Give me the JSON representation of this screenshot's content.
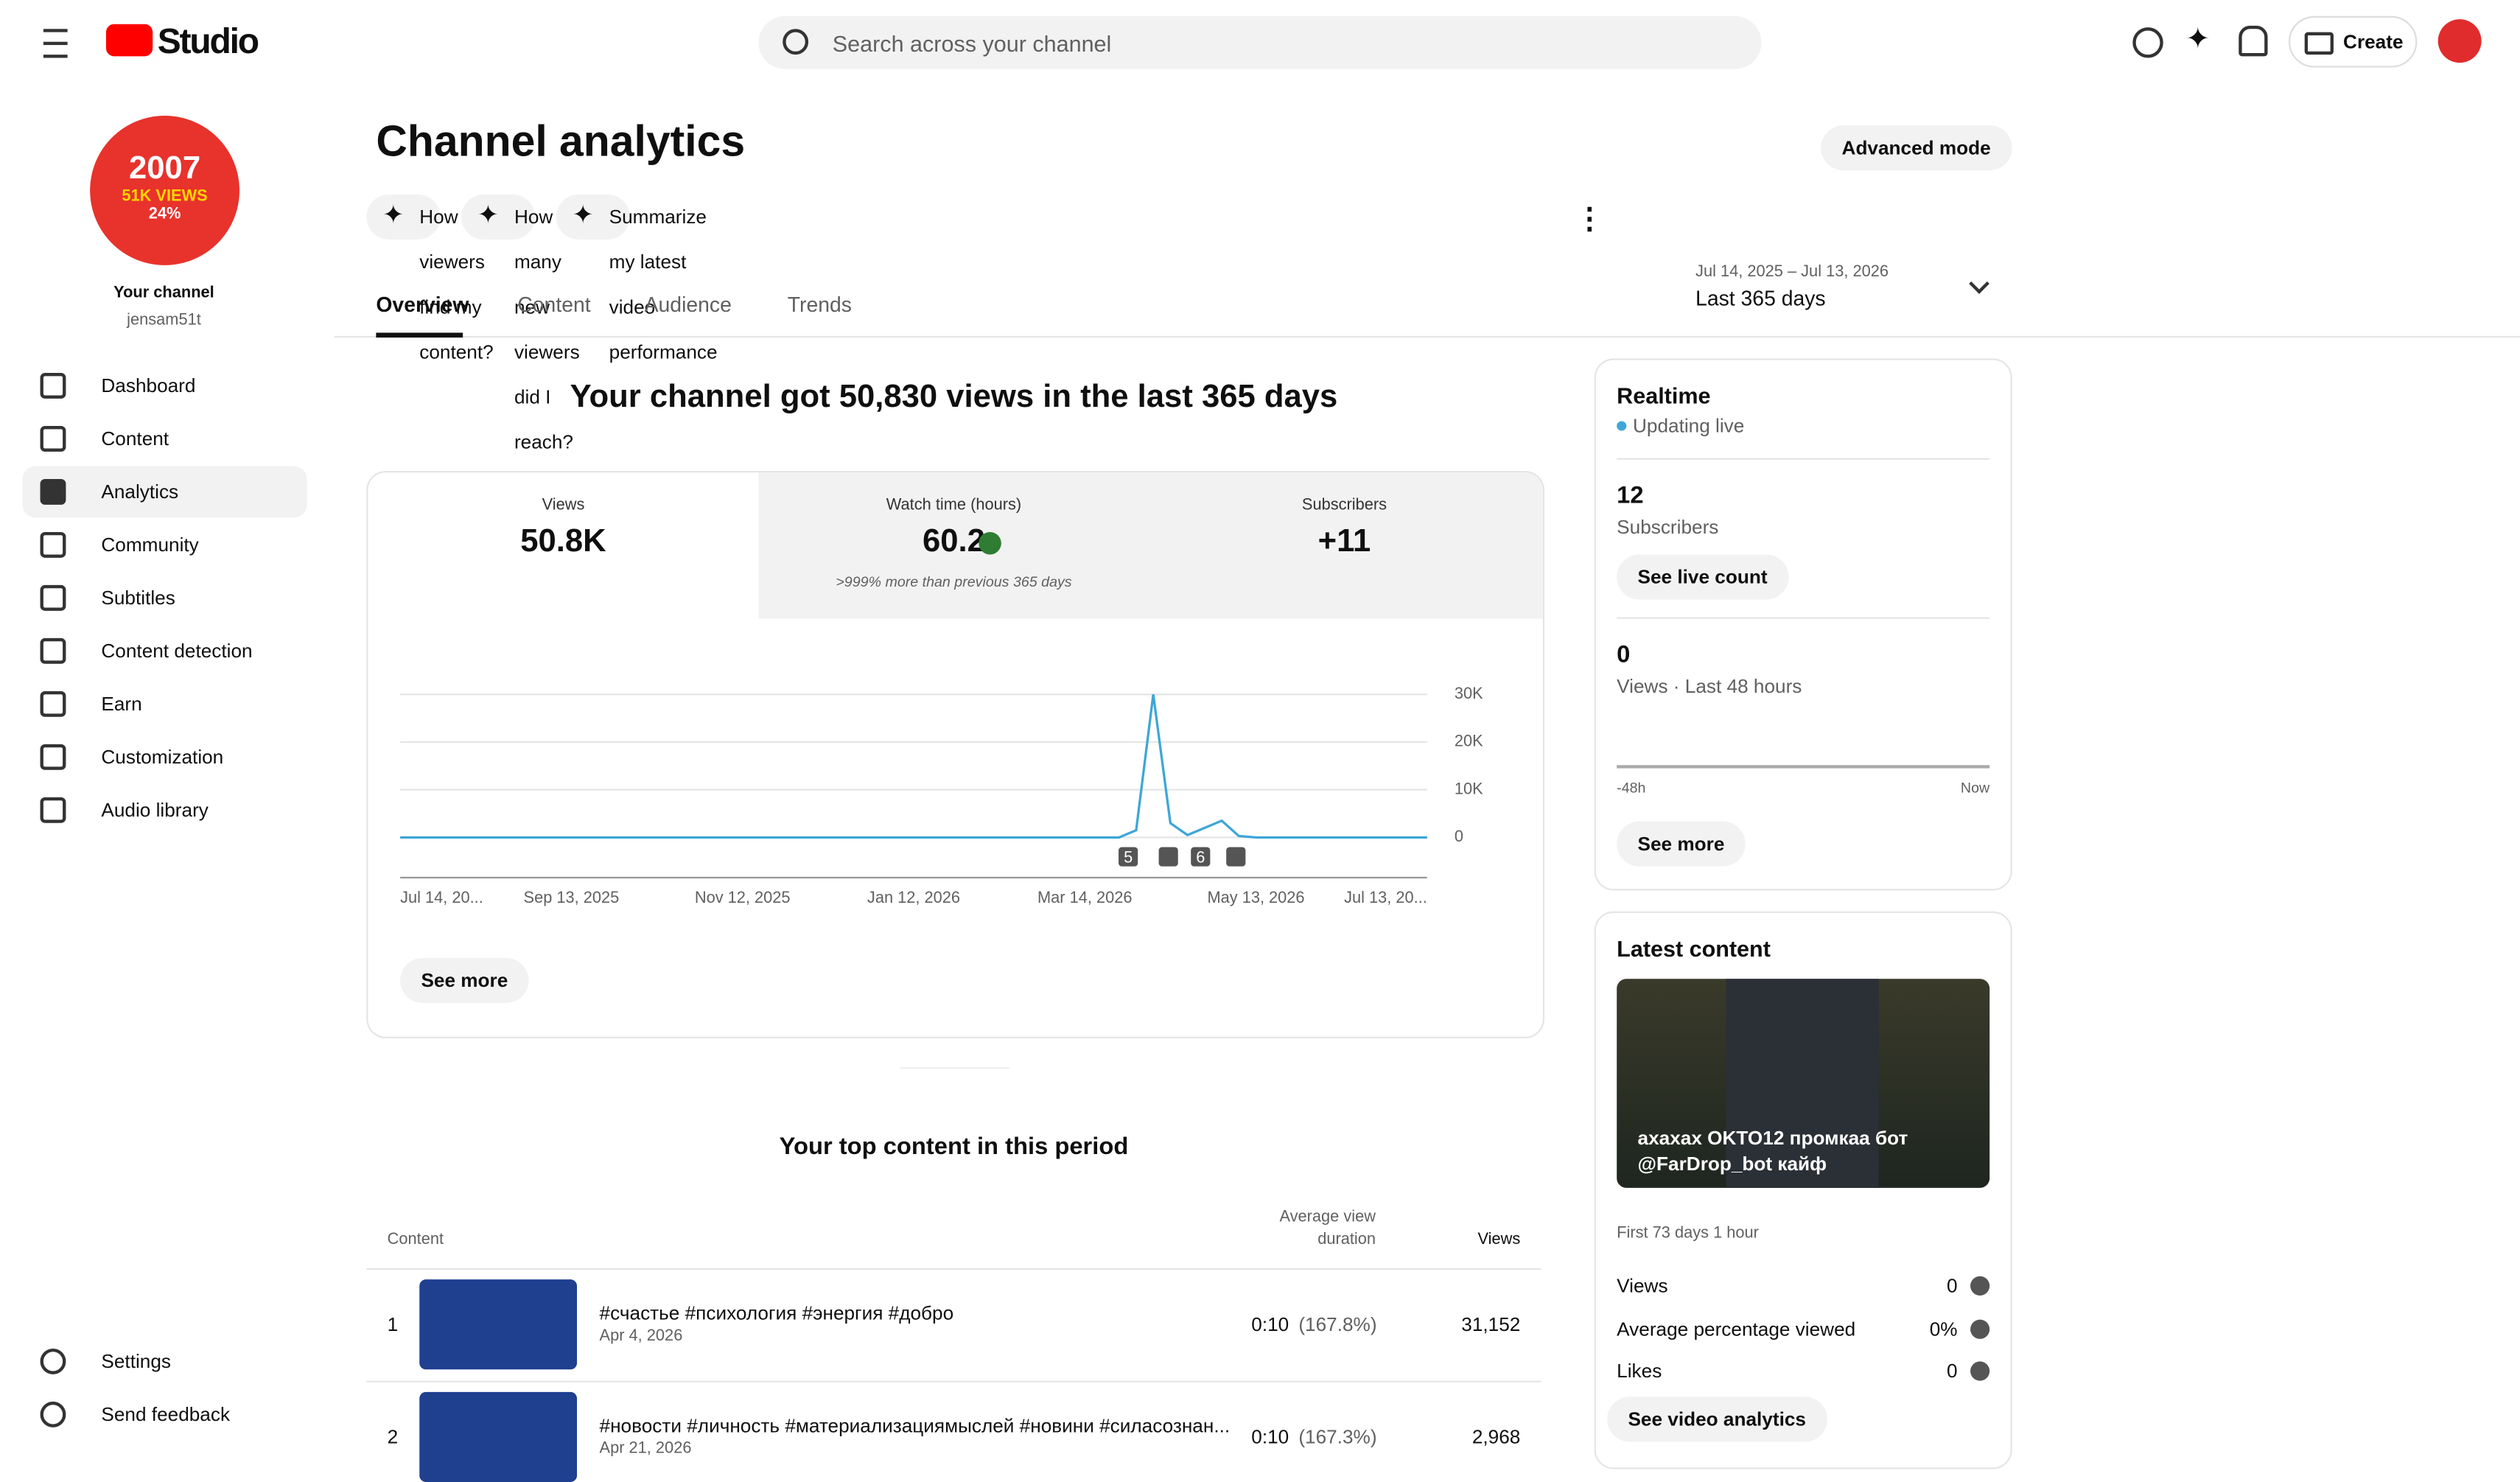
{
  "header": {
    "logo": "Studio",
    "search_placeholder": "Search across your channel",
    "create": "Create"
  },
  "sidebar": {
    "avatar_lines": [
      "2007",
      "51K VIEWS",
      "24%"
    ],
    "channel_label": "Your channel",
    "handle": "jensam51t",
    "nav": [
      "Dashboard",
      "Content",
      "Analytics",
      "Community",
      "Subtitles",
      "Content detection",
      "Earn",
      "Customization",
      "Audio library"
    ],
    "bottom": [
      "Settings",
      "Send feedback"
    ]
  },
  "main": {
    "title": "Channel analytics",
    "advanced": "Advanced mode",
    "prompts": [
      "How did viewers find my content?",
      "How many new viewers did I reach?",
      "Summarize my latest video performance"
    ],
    "tabs": [
      "Overview",
      "Content",
      "Audience",
      "Trends"
    ],
    "range_dates": "Jul 14, 2025 – Jul 13, 2026",
    "range_label": "Last 365 days",
    "headline": "Your channel got 50,830 views in the last 365 days",
    "metrics": [
      {
        "label": "Views",
        "value": "50.8K"
      },
      {
        "label": "Watch time (hours)",
        "value": "60.2",
        "note": ">999% more than previous 365 days"
      },
      {
        "label": "Subscribers",
        "value": "+11"
      }
    ],
    "see_more": "See more"
  },
  "chart_data": {
    "type": "line",
    "color": "#3ea6d8",
    "categories": [
      "Jul 14, 20...",
      null,
      null,
      null,
      null,
      null,
      null,
      null,
      null,
      null,
      "Sep 13, 2025",
      null,
      null,
      null,
      null,
      null,
      null,
      null,
      null,
      null,
      "Nov 12, 2025",
      null,
      null,
      null,
      null,
      null,
      null,
      null,
      null,
      null,
      "Jan 12, 2026",
      null,
      null,
      null,
      null,
      null,
      null,
      null,
      null,
      null,
      "Mar 14, 2026",
      null,
      null,
      null,
      null,
      null,
      null,
      null,
      null,
      null,
      "May 13, 2026",
      null,
      null,
      null,
      null,
      null,
      null,
      null,
      null,
      null,
      "Jul 13, 20..."
    ],
    "values": [
      0,
      0,
      0,
      0,
      0,
      0,
      0,
      0,
      0,
      0,
      0,
      0,
      0,
      0,
      0,
      0,
      0,
      0,
      0,
      0,
      0,
      0,
      0,
      0,
      0,
      0,
      0,
      0,
      0,
      0,
      0,
      0,
      0,
      0,
      0,
      0,
      0,
      0,
      0,
      0,
      0,
      0,
      0,
      1500,
      30000,
      3000,
      500,
      2000,
      3500,
      300,
      0,
      0,
      0,
      0,
      0,
      0,
      0,
      0,
      0,
      0,
      0
    ],
    "ylim": [
      0,
      30000
    ],
    "yticks": [
      {
        "value": 0,
        "label": "0"
      },
      {
        "value": 10000,
        "label": "10K"
      },
      {
        "value": 20000,
        "label": "20K"
      },
      {
        "value": 30000,
        "label": "30K"
      }
    ],
    "grid": true,
    "badges": [
      "5",
      "6"
    ]
  },
  "top_content": {
    "title": "Your top content in this period",
    "columns": [
      "Content",
      "Average view duration",
      "Views"
    ],
    "rows": [
      [
        "1",
        "#счастье #психология #энергия #добро",
        "Apr 4, 2026",
        "0:10",
        "(167.8%)",
        "31,152"
      ],
      [
        "2",
        "#новости #личность #материализациямыслей #новини #силасознан...",
        "Apr 21, 2026",
        "0:10",
        "(167.3%)",
        "2,968"
      ]
    ]
  },
  "realtime": {
    "title": "Realtime",
    "status": "Updating live",
    "subs": "12",
    "subs_label": "Subscribers",
    "live_count": "See live count",
    "views": "0",
    "views_label": "Views · Last 48 hours",
    "axis_start": "-48h",
    "axis_end": "Now",
    "see_more": "See more"
  },
  "latest": {
    "title": "Latest content",
    "video_title": "ахахах OKTO12 промкаа бот @FarDrop_bot кайф",
    "period": "First 73 days 1 hour",
    "stats": [
      [
        "Views",
        "0"
      ],
      [
        "Average percentage viewed",
        "0%"
      ],
      [
        "Likes",
        "0"
      ]
    ],
    "button": "See video analytics"
  }
}
